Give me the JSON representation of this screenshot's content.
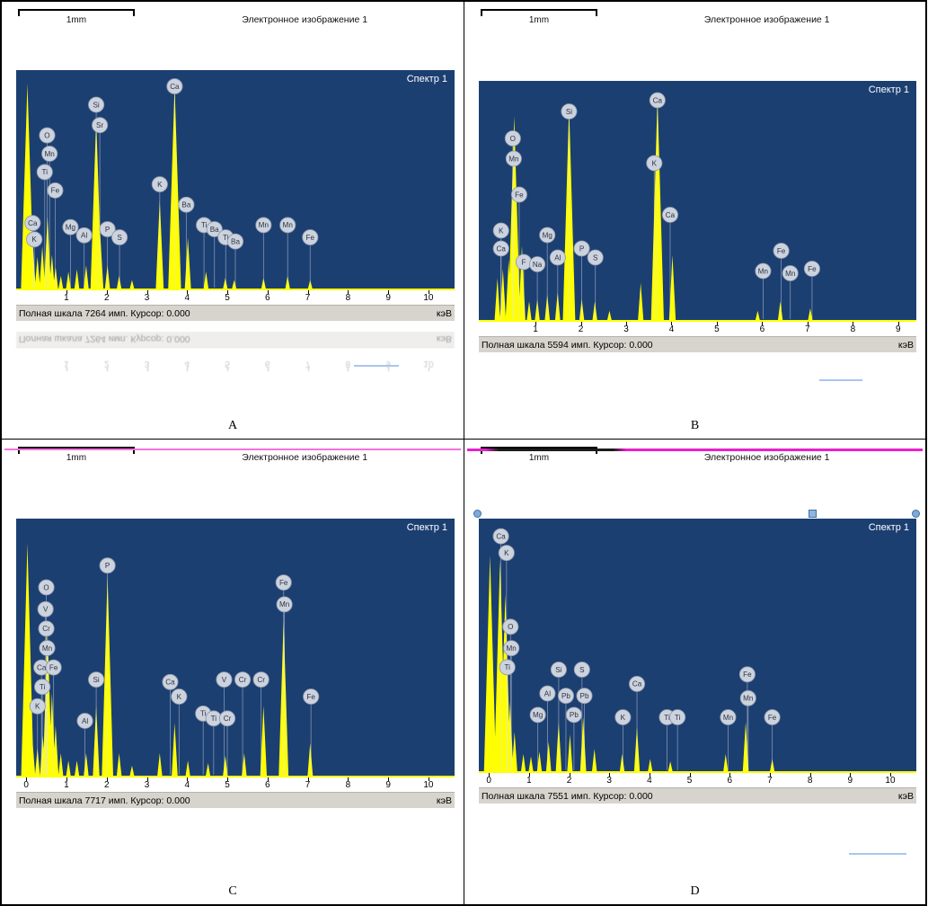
{
  "colors": {
    "plot_bg": "#1c3f72",
    "peak": "#ffff00",
    "label_bg": "#ccd3de",
    "label_border": "#8d97a9",
    "status_bg": "#d7d4ce",
    "annotation_pink": "#ef58d5",
    "handle_blue": "#7fa8dd",
    "artifact_blue": "#a9c6f0"
  },
  "panels": [
    {
      "letter": "A",
      "scale_label": "1mm",
      "header_title": "Электронное изображение 1",
      "spectrum_label": "Спектр 1",
      "status_text": "Полная шкала 7264 имп. Курсор: 0.000",
      "unit_label": "кэВ",
      "has_reflection": true,
      "has_top_line": false,
      "has_handles": false,
      "has_artifact_line": true
    },
    {
      "letter": "B",
      "scale_label": "1mm",
      "header_title": "Электронное изображение 1",
      "spectrum_label": "Спектр 1",
      "status_text": "Полная шкала 5594 имп. Курсор: 0.000",
      "unit_label": "кэВ",
      "has_reflection": false,
      "has_top_line": false,
      "has_handles": false,
      "has_artifact_line": true
    },
    {
      "letter": "C",
      "scale_label": "1mm",
      "header_title": "Электронное изображение 1",
      "spectrum_label": "Спектр 1",
      "status_text": "Полная шкала 7717 имп. Курсор: 0.000",
      "unit_label": "кэВ",
      "has_reflection": false,
      "has_top_line": true,
      "has_handles": false,
      "has_artifact_line": false
    },
    {
      "letter": "D",
      "scale_label": "1mm",
      "header_title": "Электронное изображение 1",
      "spectrum_label": "Спектр 1",
      "status_text": "Полная шкала 7551 имп. Курсор: 0.000",
      "unit_label": "кэВ",
      "has_reflection": false,
      "has_top_line": true,
      "has_handles": true,
      "has_artifact_line": true
    }
  ],
  "chart_data": [
    {
      "type": "area",
      "title": "Спектр 1",
      "xlabel": "кэВ",
      "ylabel": "",
      "full_scale_counts": 7264,
      "x_range": [
        -0.25,
        10.65
      ],
      "x_ticks": [
        1,
        2,
        3,
        4,
        5,
        6,
        7,
        8,
        9,
        10
      ],
      "peaks": [
        {
          "x": 0.03,
          "h": 0.97
        },
        {
          "x": 0.16,
          "h": 0.22
        },
        {
          "x": 0.28,
          "h": 0.15
        },
        {
          "x": 0.4,
          "h": 0.2
        },
        {
          "x": 0.53,
          "h": 0.34
        },
        {
          "x": 0.64,
          "h": 0.16
        },
        {
          "x": 0.73,
          "h": 0.1
        },
        {
          "x": 0.86,
          "h": 0.06
        },
        {
          "x": 1.05,
          "h": 0.08
        },
        {
          "x": 1.26,
          "h": 0.09
        },
        {
          "x": 1.49,
          "h": 0.11
        },
        {
          "x": 1.74,
          "h": 0.8
        },
        {
          "x": 1.84,
          "h": 0.26
        },
        {
          "x": 2.02,
          "h": 0.11
        },
        {
          "x": 2.31,
          "h": 0.06
        },
        {
          "x": 2.63,
          "h": 0.04
        },
        {
          "x": 3.32,
          "h": 0.42
        },
        {
          "x": 3.69,
          "h": 0.96
        },
        {
          "x": 4.02,
          "h": 0.24
        },
        {
          "x": 4.47,
          "h": 0.08
        },
        {
          "x": 4.95,
          "h": 0.05
        },
        {
          "x": 5.17,
          "h": 0.04
        },
        {
          "x": 5.9,
          "h": 0.05
        },
        {
          "x": 6.5,
          "h": 0.06
        },
        {
          "x": 7.06,
          "h": 0.04
        }
      ],
      "labels": [
        {
          "el": "Ca",
          "x": 3.69,
          "y": 0.04
        },
        {
          "el": "Si",
          "x": 1.74,
          "y": 0.13
        },
        {
          "el": "Sr",
          "x": 1.83,
          "y": 0.23
        },
        {
          "el": "O",
          "x": 0.52,
          "y": 0.28
        },
        {
          "el": "Mn",
          "x": 0.58,
          "y": 0.37
        },
        {
          "el": "Ti",
          "x": 0.46,
          "y": 0.46
        },
        {
          "el": "Fe",
          "x": 0.72,
          "y": 0.55
        },
        {
          "el": "K",
          "x": 3.32,
          "y": 0.52
        },
        {
          "el": "Ba",
          "x": 3.98,
          "y": 0.62
        },
        {
          "el": "Ca",
          "x": 0.16,
          "y": 0.71
        },
        {
          "el": "K",
          "x": 0.2,
          "y": 0.79
        },
        {
          "el": "Mg",
          "x": 1.1,
          "y": 0.73
        },
        {
          "el": "Al",
          "x": 1.44,
          "y": 0.77
        },
        {
          "el": "P",
          "x": 2.02,
          "y": 0.74
        },
        {
          "el": "S",
          "x": 2.32,
          "y": 0.78
        },
        {
          "el": "Ti",
          "x": 4.42,
          "y": 0.72
        },
        {
          "el": "Ba",
          "x": 4.68,
          "y": 0.74
        },
        {
          "el": "Ti",
          "x": 4.96,
          "y": 0.78
        },
        {
          "el": "Ba",
          "x": 5.2,
          "y": 0.8
        },
        {
          "el": "Mn",
          "x": 5.9,
          "y": 0.72
        },
        {
          "el": "Mn",
          "x": 6.5,
          "y": 0.72
        },
        {
          "el": "Fe",
          "x": 7.06,
          "y": 0.78
        }
      ]
    },
    {
      "type": "area",
      "title": "Спектр 1",
      "xlabel": "кэВ",
      "ylabel": "",
      "full_scale_counts": 5594,
      "x_range": [
        -0.25,
        9.4
      ],
      "x_ticks": [
        1,
        2,
        3,
        4,
        5,
        6,
        7,
        8,
        9
      ],
      "peaks": [
        {
          "x": 0.16,
          "h": 0.18
        },
        {
          "x": 0.28,
          "h": 0.22
        },
        {
          "x": 0.41,
          "h": 0.26
        },
        {
          "x": 0.53,
          "h": 0.88
        },
        {
          "x": 0.7,
          "h": 0.32
        },
        {
          "x": 0.86,
          "h": 0.08
        },
        {
          "x": 1.04,
          "h": 0.09
        },
        {
          "x": 1.26,
          "h": 0.11
        },
        {
          "x": 1.49,
          "h": 0.12
        },
        {
          "x": 1.74,
          "h": 0.92
        },
        {
          "x": 2.02,
          "h": 0.09
        },
        {
          "x": 2.31,
          "h": 0.08
        },
        {
          "x": 2.63,
          "h": 0.04
        },
        {
          "x": 3.32,
          "h": 0.16
        },
        {
          "x": 3.69,
          "h": 0.96
        },
        {
          "x": 4.02,
          "h": 0.28
        },
        {
          "x": 5.9,
          "h": 0.04
        },
        {
          "x": 6.4,
          "h": 0.08
        },
        {
          "x": 7.06,
          "h": 0.05
        }
      ],
      "labels": [
        {
          "el": "Si",
          "x": 1.74,
          "y": 0.1
        },
        {
          "el": "Ca",
          "x": 3.69,
          "y": 0.05
        },
        {
          "el": "O",
          "x": 0.5,
          "y": 0.22
        },
        {
          "el": "Mn",
          "x": 0.52,
          "y": 0.31
        },
        {
          "el": "Fe",
          "x": 0.64,
          "y": 0.47
        },
        {
          "el": "K",
          "x": 3.62,
          "y": 0.33
        },
        {
          "el": "Ca",
          "x": 3.97,
          "y": 0.56
        },
        {
          "el": "K",
          "x": 0.24,
          "y": 0.63
        },
        {
          "el": "Ca",
          "x": 0.24,
          "y": 0.71
        },
        {
          "el": "F",
          "x": 0.74,
          "y": 0.77
        },
        {
          "el": "Na",
          "x": 1.04,
          "y": 0.78
        },
        {
          "el": "Mg",
          "x": 1.26,
          "y": 0.65
        },
        {
          "el": "Al",
          "x": 1.49,
          "y": 0.75
        },
        {
          "el": "P",
          "x": 2.02,
          "y": 0.71
        },
        {
          "el": "S",
          "x": 2.32,
          "y": 0.75
        },
        {
          "el": "Fe",
          "x": 6.42,
          "y": 0.72
        },
        {
          "el": "Mn",
          "x": 6.02,
          "y": 0.81
        },
        {
          "el": "Mn",
          "x": 6.62,
          "y": 0.82
        },
        {
          "el": "Fe",
          "x": 7.1,
          "y": 0.8
        }
      ]
    },
    {
      "type": "area",
      "title": "Спектр 1",
      "xlabel": "кэВ",
      "ylabel": "",
      "full_scale_counts": 7717,
      "x_range": [
        -0.25,
        10.65
      ],
      "x_ticks": [
        0,
        1,
        2,
        3,
        4,
        5,
        6,
        7,
        8,
        9,
        10
      ],
      "peaks": [
        {
          "x": 0.03,
          "h": 0.93
        },
        {
          "x": 0.16,
          "h": 0.13
        },
        {
          "x": 0.28,
          "h": 0.11
        },
        {
          "x": 0.41,
          "h": 0.16
        },
        {
          "x": 0.53,
          "h": 0.58
        },
        {
          "x": 0.64,
          "h": 0.33
        },
        {
          "x": 0.73,
          "h": 0.2
        },
        {
          "x": 0.86,
          "h": 0.09
        },
        {
          "x": 1.05,
          "h": 0.06
        },
        {
          "x": 1.26,
          "h": 0.06
        },
        {
          "x": 1.49,
          "h": 0.09
        },
        {
          "x": 1.74,
          "h": 0.28
        },
        {
          "x": 2.02,
          "h": 0.8
        },
        {
          "x": 2.31,
          "h": 0.09
        },
        {
          "x": 2.63,
          "h": 0.04
        },
        {
          "x": 3.32,
          "h": 0.09
        },
        {
          "x": 3.69,
          "h": 0.21
        },
        {
          "x": 4.02,
          "h": 0.06
        },
        {
          "x": 4.52,
          "h": 0.05
        },
        {
          "x": 4.95,
          "h": 0.08
        },
        {
          "x": 5.42,
          "h": 0.09
        },
        {
          "x": 5.9,
          "h": 0.28
        },
        {
          "x": 6.4,
          "h": 0.62
        },
        {
          "x": 7.06,
          "h": 0.13
        }
      ],
      "labels": [
        {
          "el": "O",
          "x": 0.5,
          "y": 0.25
        },
        {
          "el": "V",
          "x": 0.48,
          "y": 0.34
        },
        {
          "el": "Cr",
          "x": 0.5,
          "y": 0.42
        },
        {
          "el": "Mn",
          "x": 0.52,
          "y": 0.5
        },
        {
          "el": "Ca",
          "x": 0.38,
          "y": 0.58
        },
        {
          "el": "Fe",
          "x": 0.68,
          "y": 0.58
        },
        {
          "el": "Ti",
          "x": 0.4,
          "y": 0.66
        },
        {
          "el": "K",
          "x": 0.28,
          "y": 0.74
        },
        {
          "el": "Al",
          "x": 1.46,
          "y": 0.8
        },
        {
          "el": "Si",
          "x": 1.74,
          "y": 0.63
        },
        {
          "el": "P",
          "x": 2.02,
          "y": 0.16
        },
        {
          "el": "Ca",
          "x": 3.58,
          "y": 0.64
        },
        {
          "el": "K",
          "x": 3.8,
          "y": 0.7
        },
        {
          "el": "V",
          "x": 4.92,
          "y": 0.63
        },
        {
          "el": "Cr",
          "x": 5.38,
          "y": 0.63
        },
        {
          "el": "Cr",
          "x": 5.84,
          "y": 0.63
        },
        {
          "el": "Ti",
          "x": 4.4,
          "y": 0.77
        },
        {
          "el": "Ti",
          "x": 4.66,
          "y": 0.79
        },
        {
          "el": "Cr",
          "x": 5.0,
          "y": 0.79
        },
        {
          "el": "Fe",
          "x": 6.4,
          "y": 0.23
        },
        {
          "el": "Mn",
          "x": 6.42,
          "y": 0.32
        },
        {
          "el": "Fe",
          "x": 7.08,
          "y": 0.7
        }
      ]
    },
    {
      "type": "area",
      "title": "Спектр 1",
      "xlabel": "кэВ",
      "ylabel": "",
      "full_scale_counts": 7551,
      "x_range": [
        -0.25,
        10.65
      ],
      "x_ticks": [
        0,
        1,
        2,
        3,
        4,
        5,
        6,
        7,
        8,
        9,
        10
      ],
      "peaks": [
        {
          "x": 0.03,
          "h": 0.88
        },
        {
          "x": 0.28,
          "h": 0.86
        },
        {
          "x": 0.41,
          "h": 0.72
        },
        {
          "x": 0.53,
          "h": 0.28
        },
        {
          "x": 0.64,
          "h": 0.16
        },
        {
          "x": 0.86,
          "h": 0.07
        },
        {
          "x": 1.05,
          "h": 0.06
        },
        {
          "x": 1.26,
          "h": 0.08
        },
        {
          "x": 1.49,
          "h": 0.12
        },
        {
          "x": 1.74,
          "h": 0.2
        },
        {
          "x": 2.02,
          "h": 0.15
        },
        {
          "x": 2.35,
          "h": 0.22
        },
        {
          "x": 2.63,
          "h": 0.09
        },
        {
          "x": 3.32,
          "h": 0.07
        },
        {
          "x": 3.69,
          "h": 0.18
        },
        {
          "x": 4.02,
          "h": 0.05
        },
        {
          "x": 4.52,
          "h": 0.04
        },
        {
          "x": 5.9,
          "h": 0.07
        },
        {
          "x": 6.4,
          "h": 0.2
        },
        {
          "x": 7.06,
          "h": 0.05
        }
      ],
      "labels": [
        {
          "el": "Ca",
          "x": 0.3,
          "y": 0.04
        },
        {
          "el": "K",
          "x": 0.44,
          "y": 0.11
        },
        {
          "el": "O",
          "x": 0.54,
          "y": 0.42
        },
        {
          "el": "Mn",
          "x": 0.56,
          "y": 0.51
        },
        {
          "el": "Ti",
          "x": 0.46,
          "y": 0.59
        },
        {
          "el": "Si",
          "x": 1.74,
          "y": 0.6
        },
        {
          "el": "S",
          "x": 2.32,
          "y": 0.6
        },
        {
          "el": "Al",
          "x": 1.46,
          "y": 0.7
        },
        {
          "el": "Pb",
          "x": 1.92,
          "y": 0.71
        },
        {
          "el": "Pb",
          "x": 2.38,
          "y": 0.71
        },
        {
          "el": "Mg",
          "x": 1.22,
          "y": 0.79
        },
        {
          "el": "Pb",
          "x": 2.12,
          "y": 0.79
        },
        {
          "el": "Ca",
          "x": 3.69,
          "y": 0.66
        },
        {
          "el": "K",
          "x": 3.34,
          "y": 0.8
        },
        {
          "el": "Ti",
          "x": 4.44,
          "y": 0.8
        },
        {
          "el": "Ti",
          "x": 4.7,
          "y": 0.8
        },
        {
          "el": "Fe",
          "x": 6.44,
          "y": 0.62
        },
        {
          "el": "Mn",
          "x": 6.46,
          "y": 0.72
        },
        {
          "el": "Mn",
          "x": 5.96,
          "y": 0.8
        },
        {
          "el": "Fe",
          "x": 7.06,
          "y": 0.8
        }
      ]
    }
  ]
}
